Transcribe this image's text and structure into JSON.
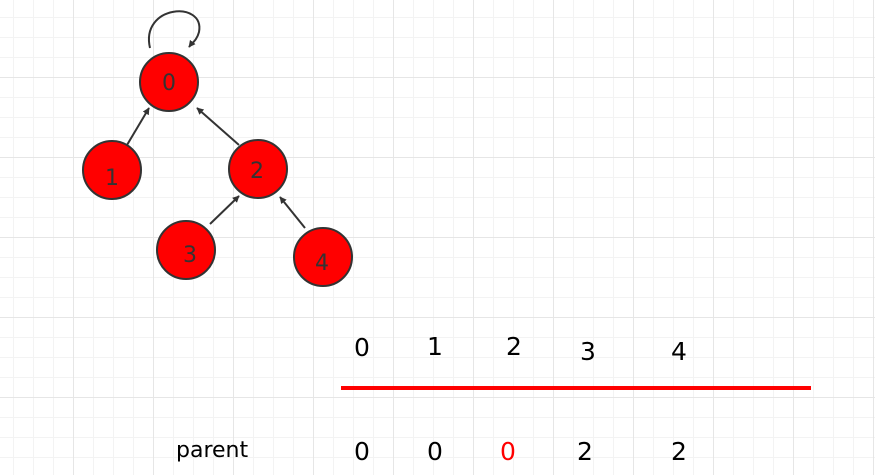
{
  "tree": {
    "nodes": [
      {
        "label": "0"
      },
      {
        "label": "1"
      },
      {
        "label": "2"
      },
      {
        "label": "3"
      },
      {
        "label": "4"
      }
    ],
    "edges": [
      {
        "from": "0",
        "to": "0",
        "kind": "self-loop"
      },
      {
        "from": "1",
        "to": "0"
      },
      {
        "from": "2",
        "to": "0"
      },
      {
        "from": "3",
        "to": "2"
      },
      {
        "from": "4",
        "to": "2"
      }
    ],
    "node_fill": "#ff0000",
    "node_stroke": "#333333"
  },
  "array": {
    "indices": [
      "0",
      "1",
      "2",
      "3",
      "4"
    ],
    "row_label": "parent",
    "values": [
      "0",
      "0",
      "0",
      "2",
      "2"
    ],
    "highlight_value_index": 2,
    "highlight_color": "#ff0000",
    "divider_color": "#ff0000"
  }
}
